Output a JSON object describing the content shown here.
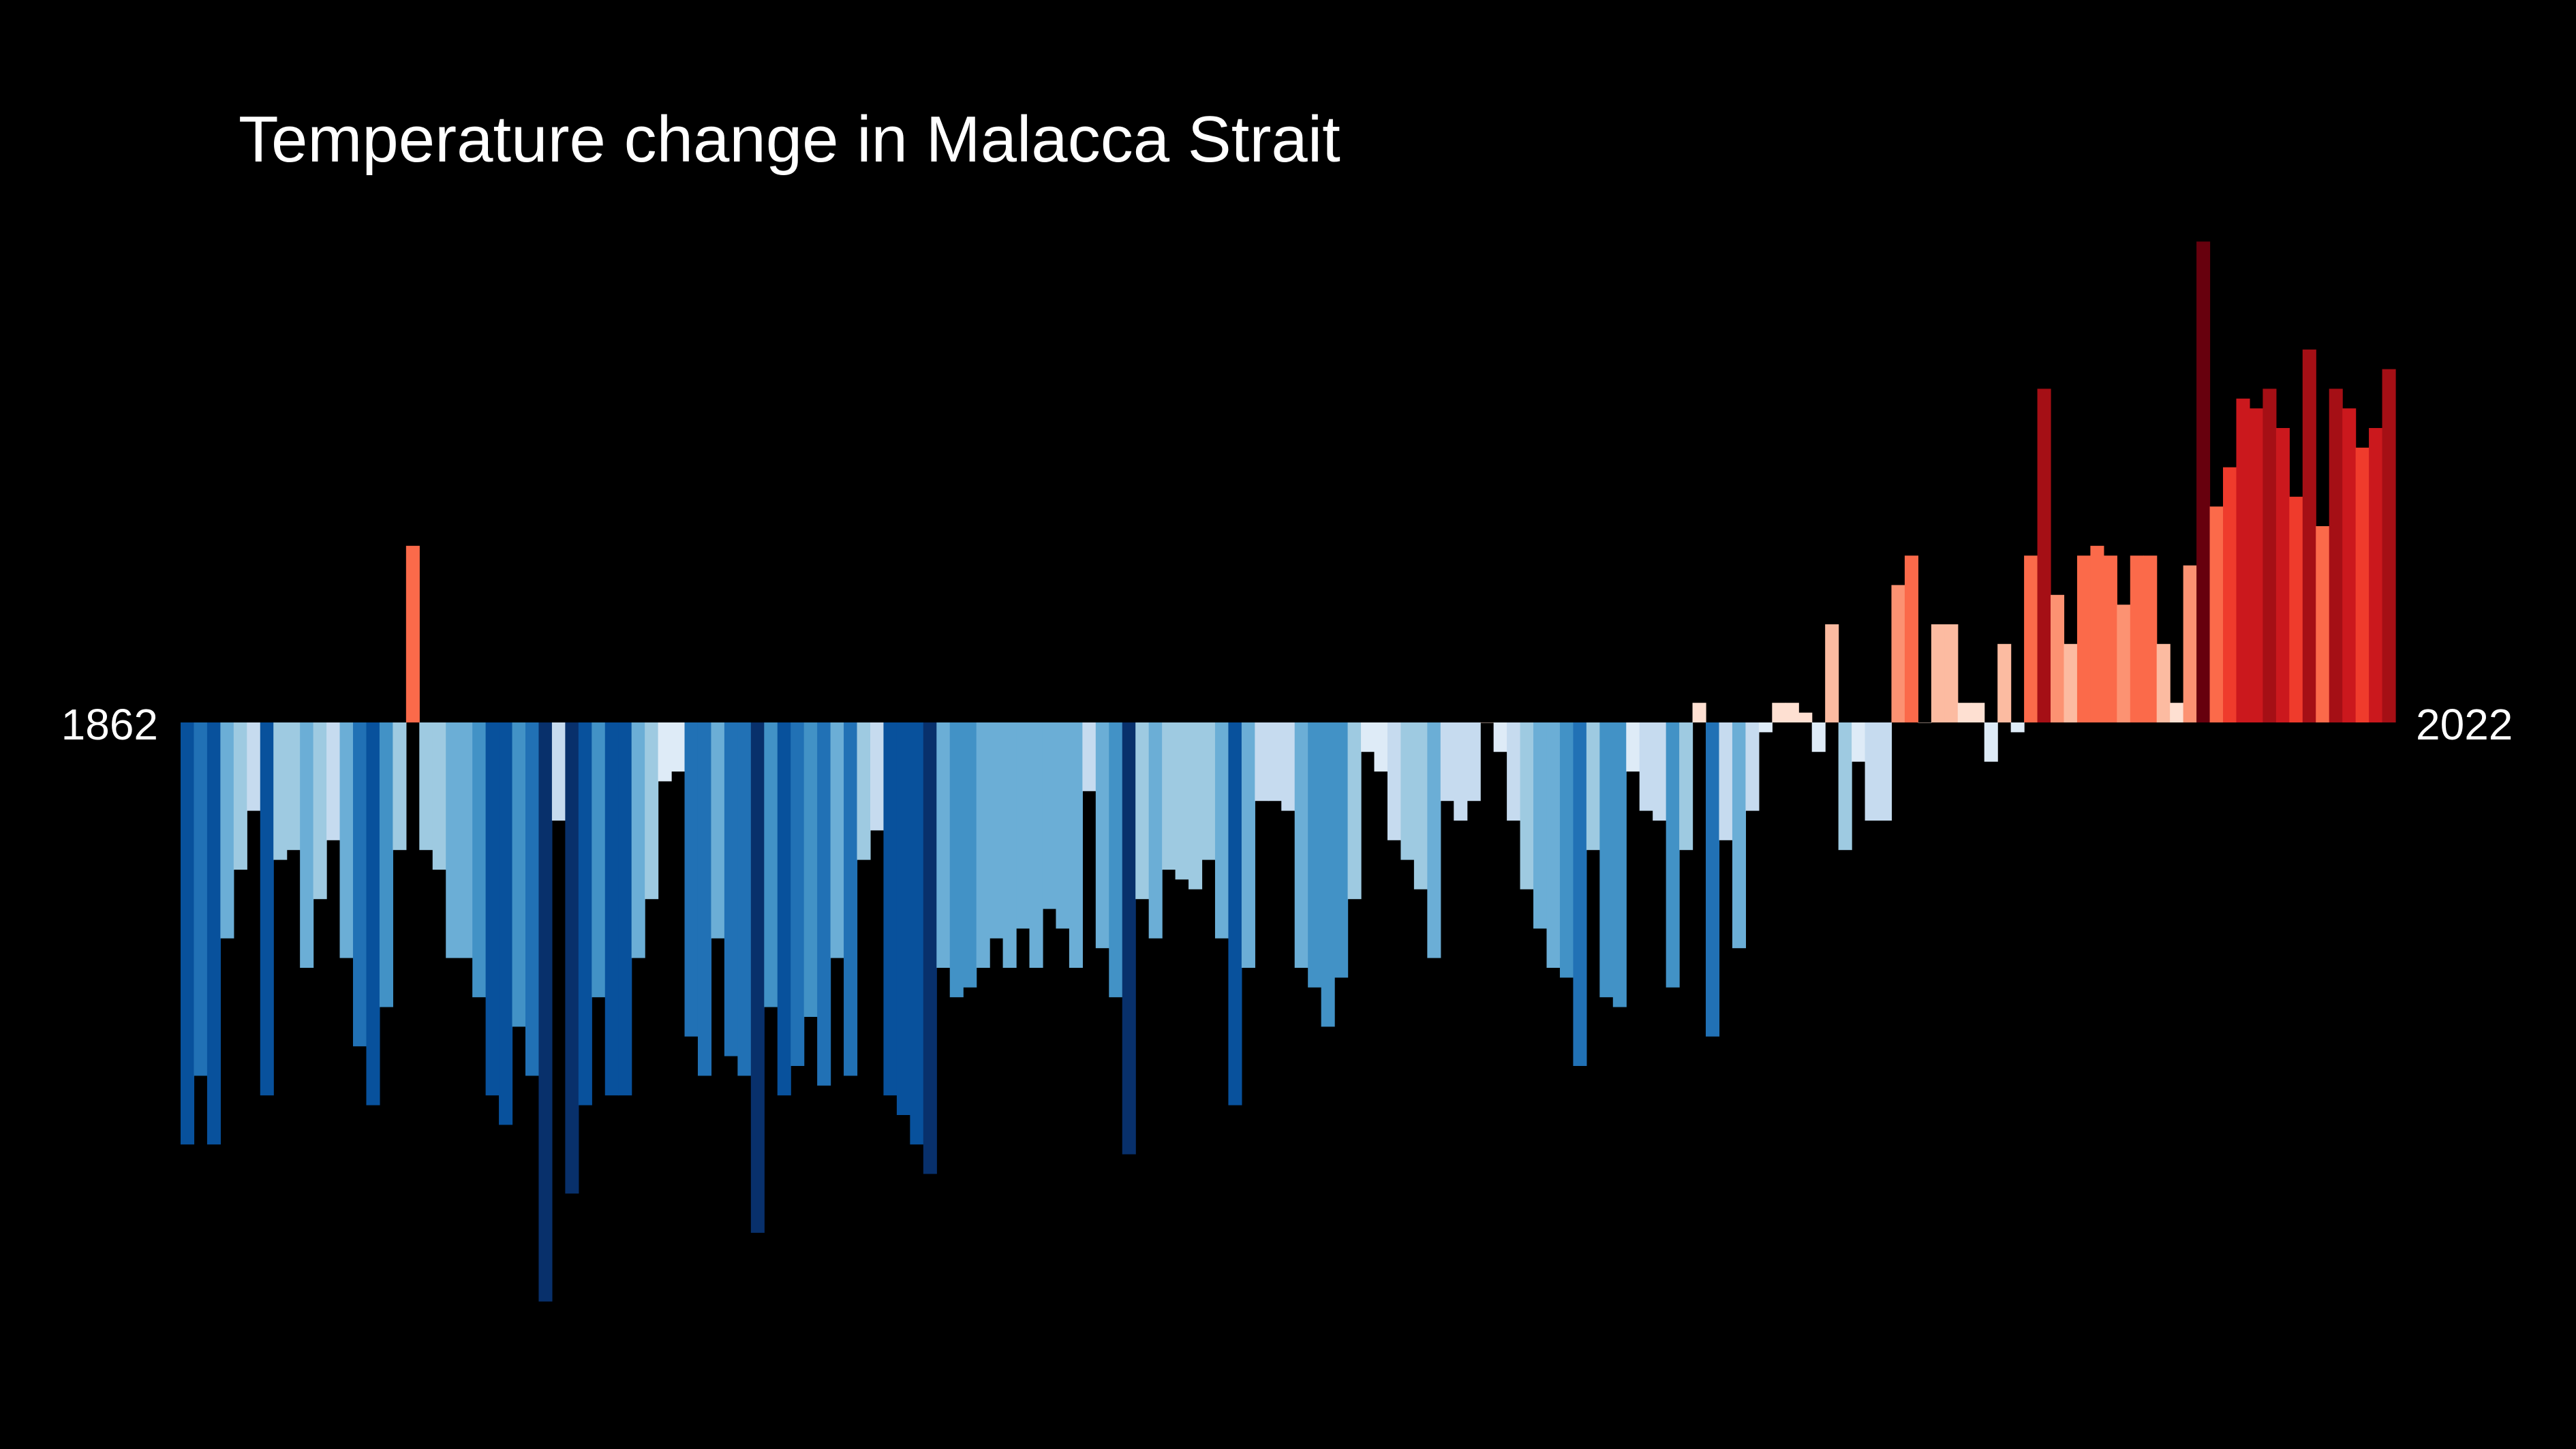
{
  "chart_data": {
    "type": "bar",
    "title": "Temperature change in Malacca Strait",
    "start_label": "1862",
    "end_label": "2022",
    "x_start": 1862,
    "x_end": 2022,
    "ylim": [
      -0.58,
      0.5
    ],
    "values": [
      -0.43,
      -0.36,
      -0.43,
      -0.22,
      -0.15,
      -0.09,
      -0.38,
      -0.14,
      -0.13,
      -0.25,
      -0.18,
      -0.12,
      -0.24,
      -0.33,
      -0.39,
      -0.29,
      -0.13,
      0.18,
      -0.13,
      -0.15,
      -0.24,
      -0.24,
      -0.28,
      -0.38,
      -0.41,
      -0.31,
      -0.36,
      -0.59,
      -0.1,
      -0.48,
      -0.39,
      -0.28,
      -0.38,
      -0.38,
      -0.24,
      -0.18,
      -0.06,
      -0.05,
      -0.32,
      -0.36,
      -0.22,
      -0.34,
      -0.36,
      -0.52,
      -0.29,
      -0.38,
      -0.35,
      -0.3,
      -0.37,
      -0.24,
      -0.36,
      -0.14,
      -0.11,
      -0.38,
      -0.4,
      -0.43,
      -0.46,
      -0.25,
      -0.28,
      -0.27,
      -0.25,
      -0.22,
      -0.25,
      -0.21,
      -0.25,
      -0.19,
      -0.21,
      -0.25,
      -0.07,
      -0.23,
      -0.28,
      -0.44,
      -0.18,
      -0.22,
      -0.15,
      -0.16,
      -0.17,
      -0.14,
      -0.22,
      -0.39,
      -0.25,
      -0.08,
      -0.08,
      -0.09,
      -0.25,
      -0.27,
      -0.31,
      -0.26,
      -0.18,
      -0.03,
      -0.05,
      -0.12,
      -0.14,
      -0.17,
      -0.24,
      -0.08,
      -0.1,
      -0.08,
      0.0,
      -0.03,
      -0.1,
      -0.17,
      -0.21,
      -0.25,
      -0.26,
      -0.35,
      -0.13,
      -0.28,
      -0.29,
      -0.05,
      -0.09,
      -0.1,
      -0.27,
      -0.13,
      0.02,
      -0.32,
      -0.12,
      -0.23,
      -0.09,
      -0.01,
      0.02,
      0.02,
      0.01,
      -0.03,
      0.1,
      -0.13,
      -0.04,
      -0.1,
      -0.1,
      0.14,
      0.17,
      0.0,
      0.1,
      0.1,
      0.02,
      0.02,
      -0.04,
      0.08,
      -0.01,
      0.17,
      0.34,
      0.13,
      0.08,
      0.17,
      0.18,
      0.17,
      0.12,
      0.17,
      0.17,
      0.08,
      0.02,
      0.16,
      0.49,
      0.22,
      0.26,
      0.33,
      0.32,
      0.34,
      0.3,
      0.23,
      0.38,
      0.2,
      0.34,
      0.32,
      0.28,
      0.3,
      0.36
    ],
    "colors": {
      "background": "#000000",
      "cold_extreme": "#08306b",
      "neutral": "#f7f7f7",
      "warm_extreme": "#67000d"
    }
  }
}
